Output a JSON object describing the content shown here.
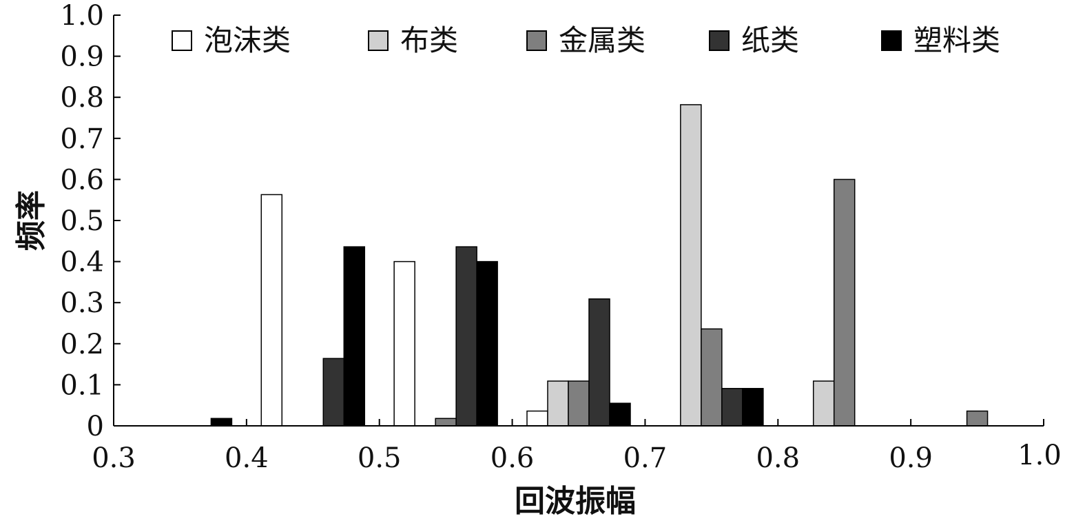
{
  "chart_data": {
    "type": "bar",
    "title": "",
    "xlabel": "回波振幅",
    "ylabel": "频率",
    "xlim": [
      0.3,
      1.0
    ],
    "ylim": [
      0,
      1.0
    ],
    "x_ticks": [
      "0.3",
      "0.4",
      "0.5",
      "0.6",
      "0.7",
      "0.8",
      "0.9",
      "1.0"
    ],
    "y_ticks": [
      "0",
      "0.1",
      "0.2",
      "0.3",
      "0.4",
      "0.5",
      "0.6",
      "0.7",
      "0.8",
      "0.9",
      "1.0"
    ],
    "bin_centers": [
      0.35,
      0.45,
      0.55,
      0.65,
      0.75,
      0.85,
      0.95
    ],
    "legend_position": "top",
    "series": [
      {
        "name": "泡沫类",
        "color": "#ffffff",
        "values": [
          0,
          0.563,
          0.4,
          0.036,
          0,
          0,
          0
        ]
      },
      {
        "name": "布类",
        "color": "#d0d0d0",
        "values": [
          0,
          0,
          0,
          0.109,
          0.782,
          0.109,
          0
        ]
      },
      {
        "name": "金属类",
        "color": "#7f7f7f",
        "values": [
          0,
          0,
          0.018,
          0.109,
          0.236,
          0.6,
          0.036
        ]
      },
      {
        "name": "纸类",
        "color": "#333333",
        "values": [
          0,
          0.164,
          0.436,
          0.309,
          0.091,
          0,
          0
        ]
      },
      {
        "name": "塑料类",
        "color": "#000000",
        "values": [
          0.018,
          0.436,
          0.4,
          0.055,
          0.091,
          0,
          0
        ]
      }
    ]
  }
}
